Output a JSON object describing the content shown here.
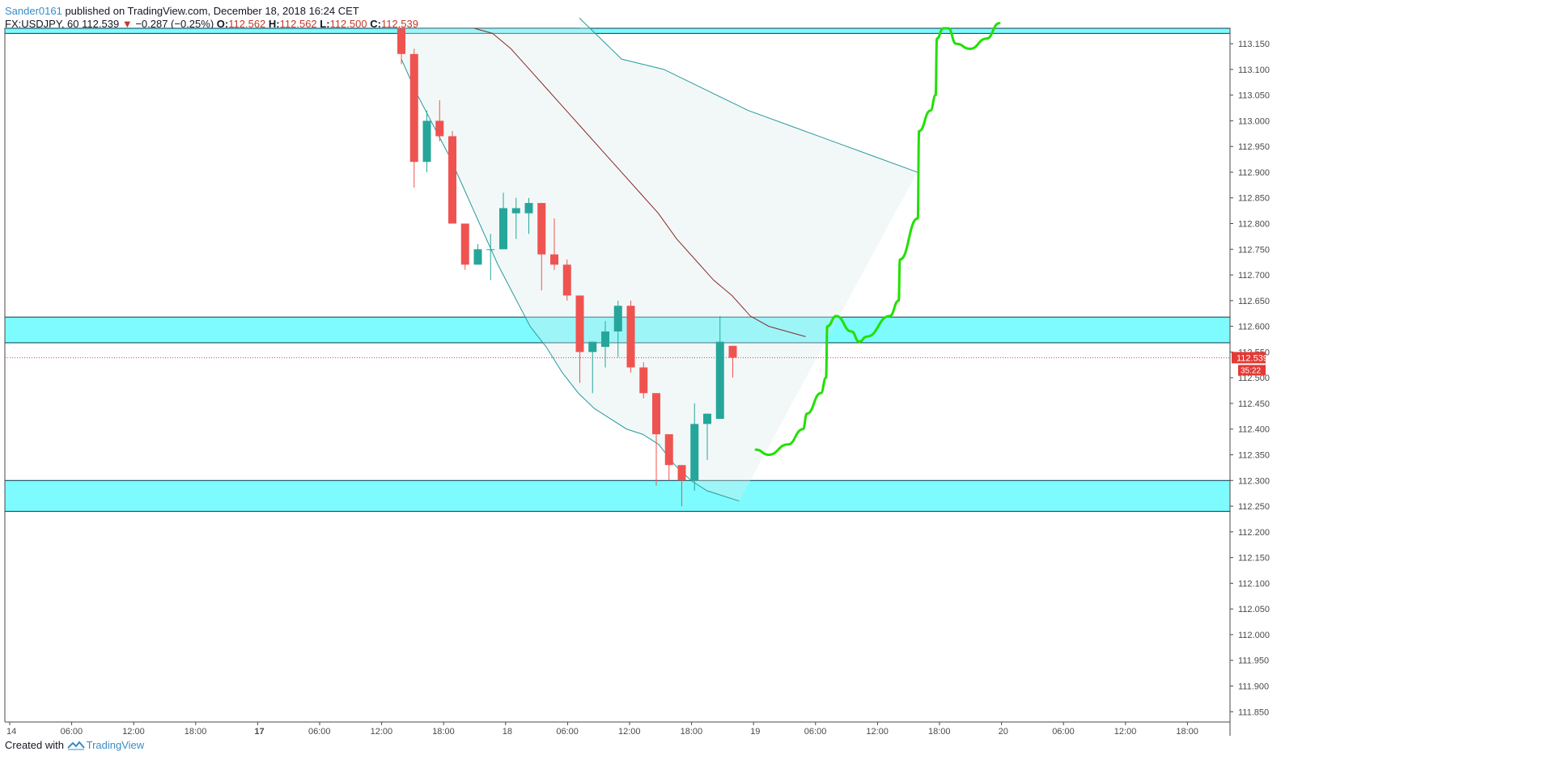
{
  "header": {
    "author": "Sander0161",
    "published": " published on TradingView.com, December 18, 2018 16:24 CET"
  },
  "symbol_line": {
    "symbol": "FX:USDJPY, 60",
    "last": "112.539",
    "change": "−0.287 (−0.25%)",
    "o_label": "O:",
    "o_val": "112.562",
    "h_label": "H:",
    "h_val": "112.562",
    "l_label": "L:",
    "l_val": "112.500",
    "c_label": "C:",
    "c_val": "112.539"
  },
  "footer": {
    "created": "Created with",
    "brand": "TradingView"
  },
  "colors": {
    "up": "#26a69a",
    "down": "#ef5350",
    "zone": "#7dfbff",
    "zone_border": "#0a3a4a",
    "band": "#2b9a9c",
    "ma": "#8b2a2a",
    "drawing": "#22e000",
    "price_line": "#e53935"
  },
  "chart_data": {
    "type": "candlestick",
    "symbol": "FX:USDJPY",
    "interval": "60",
    "ylim": [
      111.83,
      113.18
    ],
    "y_ticks": [
      113.15,
      113.1,
      113.05,
      113.0,
      112.95,
      112.9,
      112.85,
      112.8,
      112.75,
      112.7,
      112.65,
      112.6,
      112.55,
      112.5,
      112.45,
      112.4,
      112.35,
      112.3,
      112.25,
      112.2,
      112.15,
      112.1,
      112.05,
      112.0,
      111.95,
      111.9,
      111.85
    ],
    "y_tick_labels": [
      "113.150",
      "113.100",
      "113.050",
      "113.000",
      "112.950",
      "112.900",
      "112.850",
      "112.800",
      "112.750",
      "112.700",
      "112.650",
      "112.600",
      "112.550",
      "112.500",
      "112.450",
      "112.400",
      "112.350",
      "112.300",
      "112.250",
      "112.200",
      "112.150",
      "112.100",
      "112.050",
      "112.000",
      "111.950",
      "111.900",
      "111.850"
    ],
    "x_ticks": [
      "14",
      "06:00",
      "12:00",
      "18:00",
      "17",
      "06:00",
      "12:00",
      "18:00",
      "18",
      "06:00",
      "12:00",
      "18:00",
      "19",
      "06:00",
      "12:00",
      "18:00",
      "20",
      "06:00",
      "12:00",
      "18:00"
    ],
    "bold_x_ticks": [
      4
    ],
    "last_price": "112.539",
    "countdown": "35:22",
    "candles": [
      {
        "o": 113.18,
        "h": 113.18,
        "l": 113.11,
        "c": 113.13
      },
      {
        "o": 113.13,
        "h": 113.14,
        "l": 112.87,
        "c": 112.92
      },
      {
        "o": 112.92,
        "h": 113.02,
        "l": 112.9,
        "c": 113.0
      },
      {
        "o": 113.0,
        "h": 113.04,
        "l": 112.96,
        "c": 112.97
      },
      {
        "o": 112.97,
        "h": 112.98,
        "l": 112.8,
        "c": 112.8
      },
      {
        "o": 112.8,
        "h": 112.8,
        "l": 112.71,
        "c": 112.72
      },
      {
        "o": 112.72,
        "h": 112.76,
        "l": 112.72,
        "c": 112.75
      },
      {
        "o": 112.75,
        "h": 112.78,
        "l": 112.69,
        "c": 112.75
      },
      {
        "o": 112.75,
        "h": 112.86,
        "l": 112.75,
        "c": 112.83
      },
      {
        "o": 112.82,
        "h": 112.85,
        "l": 112.77,
        "c": 112.83
      },
      {
        "o": 112.82,
        "h": 112.85,
        "l": 112.78,
        "c": 112.84
      },
      {
        "o": 112.84,
        "h": 112.84,
        "l": 112.67,
        "c": 112.74
      },
      {
        "o": 112.74,
        "h": 112.81,
        "l": 112.71,
        "c": 112.72
      },
      {
        "o": 112.72,
        "h": 112.73,
        "l": 112.65,
        "c": 112.66
      },
      {
        "o": 112.66,
        "h": 112.66,
        "l": 112.49,
        "c": 112.55
      },
      {
        "o": 112.55,
        "h": 112.57,
        "l": 112.47,
        "c": 112.57
      },
      {
        "o": 112.56,
        "h": 112.61,
        "l": 112.52,
        "c": 112.59
      },
      {
        "o": 112.59,
        "h": 112.65,
        "l": 112.54,
        "c": 112.64
      },
      {
        "o": 112.64,
        "h": 112.65,
        "l": 112.51,
        "c": 112.52
      },
      {
        "o": 112.52,
        "h": 112.53,
        "l": 112.46,
        "c": 112.47
      },
      {
        "o": 112.47,
        "h": 112.47,
        "l": 112.29,
        "c": 112.39
      },
      {
        "o": 112.39,
        "h": 112.39,
        "l": 112.3,
        "c": 112.33
      },
      {
        "o": 112.33,
        "h": 112.33,
        "l": 112.25,
        "c": 112.3
      },
      {
        "o": 112.3,
        "h": 112.45,
        "l": 112.28,
        "c": 112.41
      },
      {
        "o": 112.41,
        "h": 112.43,
        "l": 112.34,
        "c": 112.43
      },
      {
        "o": 112.42,
        "h": 112.62,
        "l": 112.42,
        "c": 112.57
      },
      {
        "o": 112.562,
        "h": 112.562,
        "l": 112.5,
        "c": 112.539
      }
    ],
    "zones": [
      {
        "top": 113.185,
        "bottom": 113.17
      },
      {
        "top": 112.618,
        "bottom": 112.568
      },
      {
        "top": 112.3,
        "bottom": 112.24
      }
    ],
    "upper_band": [
      113.2,
      113.12,
      113.1,
      113.06,
      113.02,
      112.99,
      112.96,
      112.93,
      112.9
    ],
    "middle_band": [
      113.18,
      113.17,
      113.14,
      113.1,
      113.06,
      113.02,
      112.98,
      112.94,
      112.9,
      112.86,
      112.82,
      112.77,
      112.73,
      112.69,
      112.66,
      112.62,
      112.6,
      112.59,
      112.58
    ],
    "lower_band": [
      113.12,
      113.05,
      112.99,
      112.93,
      112.86,
      112.79,
      112.72,
      112.66,
      112.6,
      112.56,
      112.51,
      112.47,
      112.44,
      112.42,
      112.4,
      112.39,
      112.37,
      112.33,
      112.3,
      112.28,
      112.27,
      112.26
    ],
    "projection": [
      [
        27.5,
        112.36
      ],
      [
        28.5,
        112.35
      ],
      [
        30,
        112.37
      ],
      [
        31.2,
        112.4
      ],
      [
        31.5,
        112.43
      ],
      [
        32.6,
        112.47
      ],
      [
        33,
        112.5
      ],
      [
        33.1,
        112.6
      ],
      [
        33.8,
        112.62
      ],
      [
        35,
        112.59
      ],
      [
        35.6,
        112.57
      ],
      [
        36.2,
        112.58
      ],
      [
        38,
        112.62
      ],
      [
        38.7,
        112.65
      ],
      [
        38.8,
        112.73
      ],
      [
        40.2,
        112.81
      ],
      [
        40.3,
        112.98
      ],
      [
        41.2,
        113.02
      ],
      [
        41.6,
        113.05
      ],
      [
        41.7,
        113.16
      ],
      [
        42.2,
        113.18
      ],
      [
        42.6,
        113.18
      ],
      [
        43.2,
        113.15
      ],
      [
        44.3,
        113.14
      ],
      [
        45.6,
        113.16
      ],
      [
        46.6,
        113.19
      ]
    ]
  }
}
